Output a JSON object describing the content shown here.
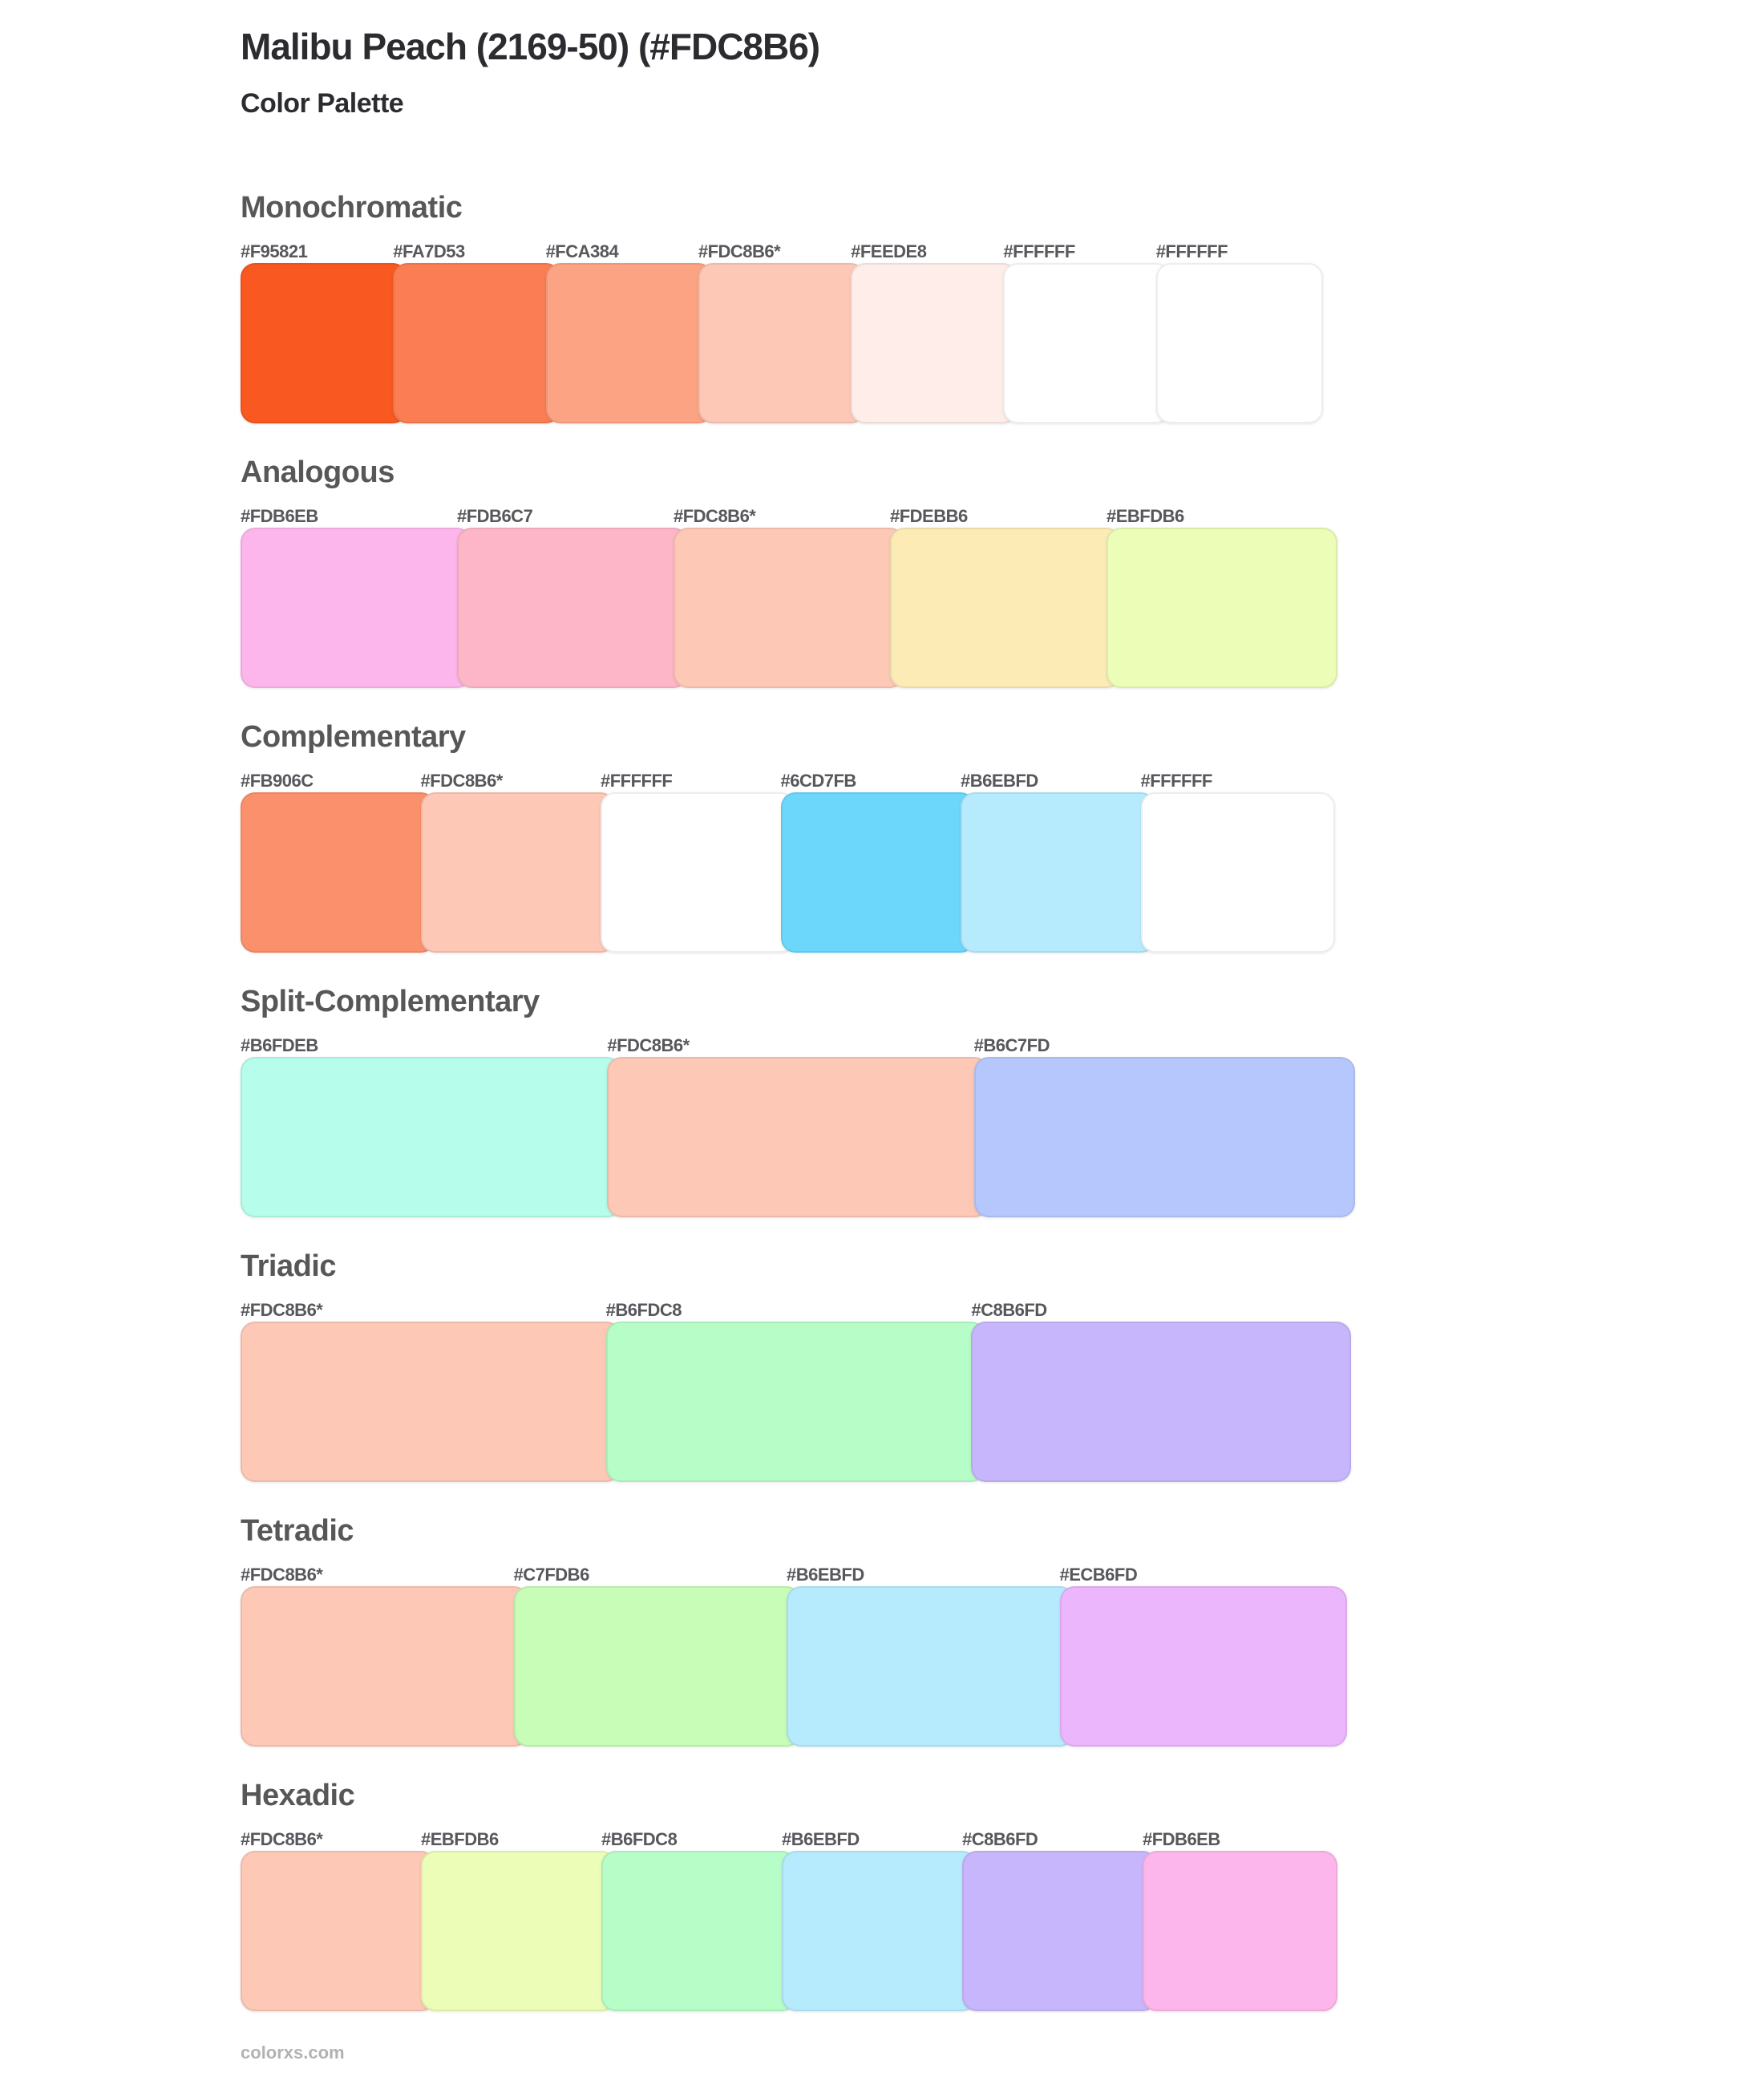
{
  "header": {
    "title": "Malibu Peach (2169-50) (#FDC8B6)",
    "subtitle": "Color Palette"
  },
  "sections": [
    {
      "name": "Monochromatic",
      "swatches": [
        {
          "label": "#F95821",
          "color": "#F95821"
        },
        {
          "label": "#FA7D53",
          "color": "#FA7D53"
        },
        {
          "label": "#FCA384",
          "color": "#FCA384"
        },
        {
          "label": "#FDC8B6*",
          "color": "#FDC8B6"
        },
        {
          "label": "#FEEDE8",
          "color": "#FEEDE8"
        },
        {
          "label": "#FFFFFF",
          "color": "#FFFFFF"
        },
        {
          "label": "#FFFFFF",
          "color": "#FFFFFF"
        }
      ]
    },
    {
      "name": "Analogous",
      "swatches": [
        {
          "label": "#FDB6EB",
          "color": "#FDB6EB"
        },
        {
          "label": "#FDB6C7",
          "color": "#FDB6C7"
        },
        {
          "label": "#FDC8B6*",
          "color": "#FDC8B6"
        },
        {
          "label": "#FDEBB6",
          "color": "#FDEBB6"
        },
        {
          "label": "#EBFDB6",
          "color": "#EBFDB6"
        }
      ]
    },
    {
      "name": "Complementary",
      "swatches": [
        {
          "label": "#FB906C",
          "color": "#FB906C"
        },
        {
          "label": "#FDC8B6*",
          "color": "#FDC8B6"
        },
        {
          "label": "#FFFFFF",
          "color": "#FFFFFF"
        },
        {
          "label": "#6CD7FB",
          "color": "#6CD7FB"
        },
        {
          "label": "#B6EBFD",
          "color": "#B6EBFD"
        },
        {
          "label": "#FFFFFF",
          "color": "#FFFFFF"
        }
      ]
    },
    {
      "name": "Split-Complementary",
      "swatches": [
        {
          "label": "#B6FDEB",
          "color": "#B6FDEB"
        },
        {
          "label": "#FDC8B6*",
          "color": "#FDC8B6"
        },
        {
          "label": "#B6C7FD",
          "color": "#B6C7FD"
        }
      ]
    },
    {
      "name": "Triadic",
      "swatches": [
        {
          "label": "#FDC8B6*",
          "color": "#FDC8B6"
        },
        {
          "label": "#B6FDC8",
          "color": "#B6FDC8"
        },
        {
          "label": "#C8B6FD",
          "color": "#C8B6FD"
        }
      ]
    },
    {
      "name": "Tetradic",
      "swatches": [
        {
          "label": "#FDC8B6*",
          "color": "#FDC8B6"
        },
        {
          "label": "#C7FDB6",
          "color": "#C7FDB6"
        },
        {
          "label": "#B6EBFD",
          "color": "#B6EBFD"
        },
        {
          "label": "#ECB6FD",
          "color": "#ECB6FD"
        }
      ]
    },
    {
      "name": "Hexadic",
      "swatches": [
        {
          "label": "#FDC8B6*",
          "color": "#FDC8B6"
        },
        {
          "label": "#EBFDB6",
          "color": "#EBFDB6"
        },
        {
          "label": "#B6FDC8",
          "color": "#B6FDC8"
        },
        {
          "label": "#B6EBFD",
          "color": "#B6EBFD"
        },
        {
          "label": "#C8B6FD",
          "color": "#C8B6FD"
        },
        {
          "label": "#FDB6EB",
          "color": "#FDB6EB"
        }
      ]
    }
  ],
  "footer": {
    "site": "colorxs.com"
  }
}
